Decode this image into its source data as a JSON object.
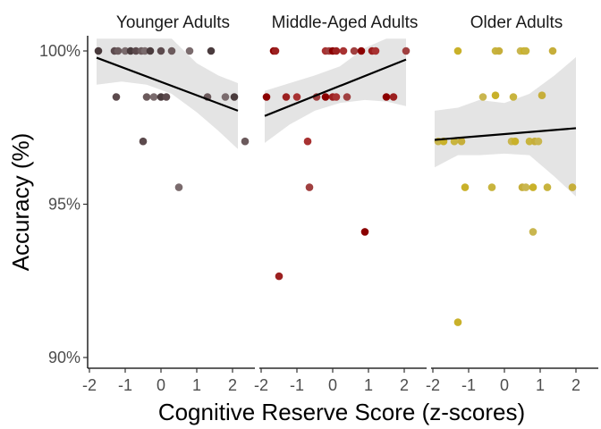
{
  "chart_data": {
    "type": "scatter",
    "ylabel": "Accuracy (%)",
    "xlabel": "Cognitive Reserve Score (z-scores)",
    "x_ticks": [
      "-2",
      "-1",
      "0",
      "1",
      "2"
    ],
    "x_tick_values": [
      -2,
      -1,
      0,
      1,
      2
    ],
    "y_ticks": [
      "90%",
      "95%",
      "100%"
    ],
    "y_tick_values": [
      90,
      95,
      100
    ],
    "xlim": [
      -2.1,
      2.55
    ],
    "ylim": [
      89.6,
      100.4
    ],
    "grid": false,
    "panels": [
      {
        "title": "Younger Adults",
        "color": "#4a3b3d",
        "point_colors": [
          "#4a3b3d",
          "#5c4a4d",
          "#6b5a5c",
          "#7a6b6d"
        ],
        "trend": {
          "x": [
            -1.8,
            2.15
          ],
          "y": [
            99.78,
            98.05
          ]
        },
        "ci_upper": [
          100.4,
          100.4,
          100.4,
          100.4,
          99.6,
          99.2,
          98.95
        ],
        "ci_lower": [
          98.9,
          99.0,
          98.9,
          98.6,
          98.0,
          97.4,
          96.8
        ],
        "ci_x": [
          -1.8,
          -1.1,
          -0.4,
          0.3,
          1.0,
          1.6,
          2.15
        ],
        "points": [
          {
            "x": -1.75,
            "y": 100
          },
          {
            "x": -1.3,
            "y": 100
          },
          {
            "x": -1.2,
            "y": 100
          },
          {
            "x": -1.0,
            "y": 100
          },
          {
            "x": -0.85,
            "y": 100
          },
          {
            "x": -0.7,
            "y": 100
          },
          {
            "x": -0.55,
            "y": 100
          },
          {
            "x": -0.45,
            "y": 100
          },
          {
            "x": -0.3,
            "y": 100
          },
          {
            "x": 0.0,
            "y": 100
          },
          {
            "x": 0.3,
            "y": 100
          },
          {
            "x": 0.8,
            "y": 100
          },
          {
            "x": 1.4,
            "y": 100
          },
          {
            "x": -1.25,
            "y": 98.5
          },
          {
            "x": -0.4,
            "y": 98.5
          },
          {
            "x": -0.2,
            "y": 98.5
          },
          {
            "x": 0.0,
            "y": 98.5
          },
          {
            "x": 0.15,
            "y": 98.5
          },
          {
            "x": 1.3,
            "y": 98.5
          },
          {
            "x": 1.8,
            "y": 98.5
          },
          {
            "x": 2.05,
            "y": 98.5
          },
          {
            "x": -0.5,
            "y": 97.05
          },
          {
            "x": 2.35,
            "y": 97.05
          },
          {
            "x": 0.5,
            "y": 95.55
          }
        ]
      },
      {
        "title": "Middle-Aged Adults",
        "color": "#8b0000",
        "point_colors": [
          "#8b0000",
          "#9c2020",
          "#a83232",
          "#a04040"
        ],
        "trend": {
          "x": [
            -1.9,
            2.05
          ],
          "y": [
            97.88,
            99.72
          ]
        },
        "ci_upper": [
          98.7,
          98.95,
          99.2,
          99.5,
          100.1,
          100.4,
          100.4
        ],
        "ci_lower": [
          97.0,
          97.6,
          98.05,
          98.3,
          98.4,
          98.35,
          98.2
        ],
        "ci_x": [
          -1.9,
          -1.2,
          -0.5,
          0.2,
          0.9,
          1.5,
          2.05
        ],
        "points": [
          {
            "x": -1.65,
            "y": 100
          },
          {
            "x": -1.6,
            "y": 100
          },
          {
            "x": -0.2,
            "y": 100
          },
          {
            "x": -0.1,
            "y": 100
          },
          {
            "x": 0.0,
            "y": 100
          },
          {
            "x": 0.1,
            "y": 100
          },
          {
            "x": 0.3,
            "y": 100
          },
          {
            "x": 0.6,
            "y": 100
          },
          {
            "x": 0.8,
            "y": 100
          },
          {
            "x": 1.1,
            "y": 100
          },
          {
            "x": 1.2,
            "y": 100
          },
          {
            "x": 2.05,
            "y": 100
          },
          {
            "x": -1.85,
            "y": 98.5
          },
          {
            "x": -1.3,
            "y": 98.5
          },
          {
            "x": -1.0,
            "y": 98.5
          },
          {
            "x": -0.45,
            "y": 98.5
          },
          {
            "x": -0.2,
            "y": 98.5
          },
          {
            "x": 0.0,
            "y": 98.5
          },
          {
            "x": 0.1,
            "y": 98.5
          },
          {
            "x": 0.4,
            "y": 98.5
          },
          {
            "x": 1.5,
            "y": 98.5
          },
          {
            "x": 1.7,
            "y": 98.5
          },
          {
            "x": -0.7,
            "y": 97.05
          },
          {
            "x": -0.65,
            "y": 95.55
          },
          {
            "x": 0.9,
            "y": 94.1
          },
          {
            "x": -1.5,
            "y": 92.65
          }
        ]
      },
      {
        "title": "Older Adults",
        "color": "#c9b12a",
        "point_colors": [
          "#c9b12a",
          "#c8b43e",
          "#c6ae3a",
          "#c9b64f"
        ],
        "trend": {
          "x": [
            -1.95,
            2.0
          ],
          "y": [
            97.1,
            97.48
          ]
        },
        "ci_upper": [
          98.05,
          98.15,
          98.4,
          98.3,
          98.6,
          99.2,
          99.8
        ],
        "ci_lower": [
          96.2,
          96.6,
          96.6,
          96.65,
          96.6,
          95.9,
          95.25
        ],
        "ci_x": [
          -1.95,
          -1.3,
          -0.7,
          0.0,
          0.7,
          1.4,
          2.0
        ],
        "points": [
          {
            "x": -1.3,
            "y": 100
          },
          {
            "x": -0.25,
            "y": 100
          },
          {
            "x": -0.15,
            "y": 100
          },
          {
            "x": 0.45,
            "y": 100
          },
          {
            "x": 0.55,
            "y": 100
          },
          {
            "x": 0.6,
            "y": 100
          },
          {
            "x": 1.35,
            "y": 100
          },
          {
            "x": -0.6,
            "y": 98.5
          },
          {
            "x": -0.25,
            "y": 98.55
          },
          {
            "x": 0.25,
            "y": 98.5
          },
          {
            "x": 1.05,
            "y": 98.55
          },
          {
            "x": -1.85,
            "y": 97.05
          },
          {
            "x": -1.7,
            "y": 97.05
          },
          {
            "x": -1.4,
            "y": 97.05
          },
          {
            "x": -1.2,
            "y": 97.05
          },
          {
            "x": 0.2,
            "y": 97.05
          },
          {
            "x": 0.3,
            "y": 97.05
          },
          {
            "x": 0.7,
            "y": 97.05
          },
          {
            "x": 0.85,
            "y": 97.05
          },
          {
            "x": 0.95,
            "y": 97.05
          },
          {
            "x": -1.1,
            "y": 95.55
          },
          {
            "x": -0.35,
            "y": 95.55
          },
          {
            "x": 0.5,
            "y": 95.55
          },
          {
            "x": 0.6,
            "y": 95.55
          },
          {
            "x": 0.8,
            "y": 95.55
          },
          {
            "x": 1.2,
            "y": 95.55
          },
          {
            "x": 1.9,
            "y": 95.55
          },
          {
            "x": 0.8,
            "y": 94.1
          },
          {
            "x": -1.3,
            "y": 91.15
          }
        ]
      }
    ]
  }
}
